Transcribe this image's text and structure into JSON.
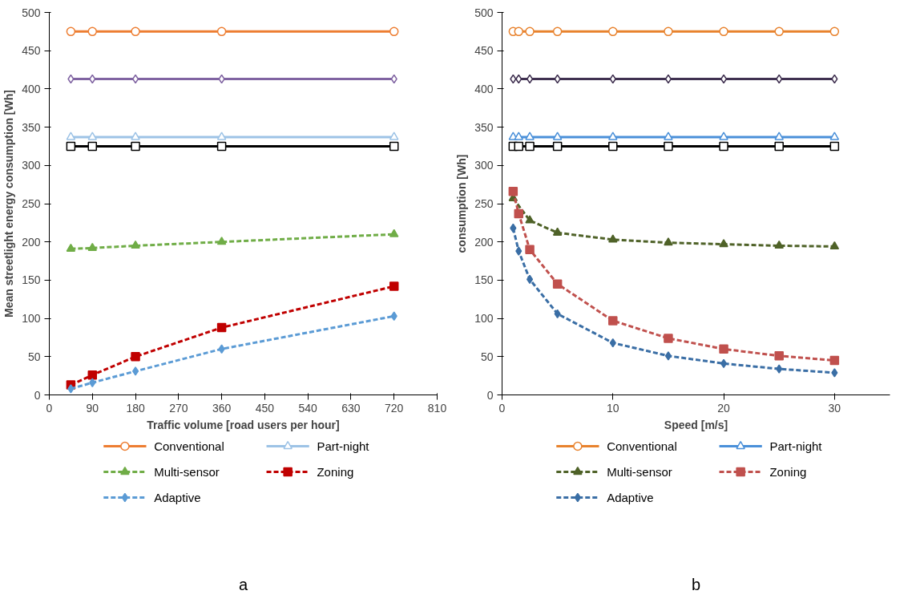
{
  "chart_data": [
    {
      "type": "line",
      "xlabel": "Traffic volume [road users per hour]",
      "ylabel": "Mean streetlight energy consumption [Wh]",
      "x": [
        45,
        90,
        180,
        360,
        720
      ],
      "xlim": [
        0,
        810
      ],
      "xticks": [
        0,
        90,
        180,
        270,
        360,
        450,
        540,
        630,
        720,
        810
      ],
      "ylim": [
        0,
        500
      ],
      "yticks": [
        0,
        50,
        100,
        150,
        200,
        250,
        300,
        350,
        400,
        450,
        500
      ],
      "grid": false,
      "legend": "bottom",
      "annotations": [
        "a"
      ],
      "series": [
        {
          "name": "Conventional",
          "color": "#ed7d31",
          "marker": "circle",
          "line_style": "solid",
          "values": [
            475,
            475,
            475,
            475,
            475
          ]
        },
        {
          "color": "#8064a2",
          "marker": "diamond",
          "line_style": "solid",
          "values": [
            413,
            413,
            413,
            413,
            413
          ]
        },
        {
          "name": "Part-night",
          "color": "#9dc3e6",
          "marker": "triangle",
          "line_style": "solid",
          "values": [
            337,
            337,
            337,
            337,
            337
          ]
        },
        {
          "color": "#000000",
          "marker": "square",
          "line_style": "solid",
          "values": [
            325,
            325,
            325,
            325,
            325
          ]
        },
        {
          "name": "Multi-sensor",
          "color": "#70ad47",
          "marker": "triangle",
          "line_style": "dashed",
          "values": [
            191,
            192,
            195,
            200,
            210
          ]
        },
        {
          "name": "Zoning",
          "color": "#c00000",
          "marker": "square",
          "line_style": "dashed",
          "values": [
            13,
            26,
            50,
            88,
            142
          ]
        },
        {
          "name": "Adaptive",
          "color": "#5b9bd5",
          "marker": "diamond",
          "line_style": "dashed",
          "values": [
            8,
            16,
            31,
            60,
            103
          ]
        }
      ]
    },
    {
      "type": "line",
      "xlabel": "Speed [m/s]",
      "ylabel": "consumption [Wh]",
      "x": [
        1,
        1.5,
        2.5,
        5,
        10,
        15,
        20,
        25,
        30
      ],
      "xlim": [
        0,
        35
      ],
      "xticks": [
        0,
        10,
        20,
        30
      ],
      "ylim": [
        0,
        500
      ],
      "yticks": [
        0,
        50,
        100,
        150,
        200,
        250,
        300,
        350,
        400,
        450,
        500
      ],
      "grid": false,
      "legend": "bottom",
      "annotations": [
        "b"
      ],
      "series": [
        {
          "name": "Conventional",
          "color": "#e8822d",
          "marker": "circle",
          "line_style": "solid",
          "values": [
            475,
            475,
            475,
            475,
            475,
            475,
            475,
            475,
            475
          ]
        },
        {
          "color": "#403151",
          "marker": "diamond",
          "line_style": "solid",
          "values": [
            413,
            413,
            413,
            413,
            413,
            413,
            413,
            413,
            413
          ]
        },
        {
          "name": "Part-night",
          "color": "#4a90d9",
          "marker": "triangle",
          "line_style": "solid",
          "values": [
            337,
            337,
            337,
            337,
            337,
            337,
            337,
            337,
            337
          ]
        },
        {
          "color": "#000000",
          "marker": "square",
          "line_style": "solid",
          "values": [
            325,
            325,
            325,
            325,
            325,
            325,
            325,
            325,
            325
          ]
        },
        {
          "name": "Multi-sensor",
          "color": "#4f6228",
          "marker": "triangle",
          "line_style": "dashed",
          "values": [
            257,
            null,
            228,
            212,
            203,
            199,
            197,
            195,
            194
          ]
        },
        {
          "name": "Zoning",
          "color": "#c0504d",
          "marker": "square",
          "line_style": "dashed",
          "values": [
            266,
            237,
            190,
            145,
            97,
            74,
            60,
            51,
            45
          ]
        },
        {
          "name": "Adaptive",
          "color": "#3a6ea5",
          "marker": "diamond",
          "line_style": "dashed",
          "values": [
            218,
            188,
            151,
            106,
            68,
            51,
            41,
            34,
            29
          ]
        }
      ]
    }
  ]
}
